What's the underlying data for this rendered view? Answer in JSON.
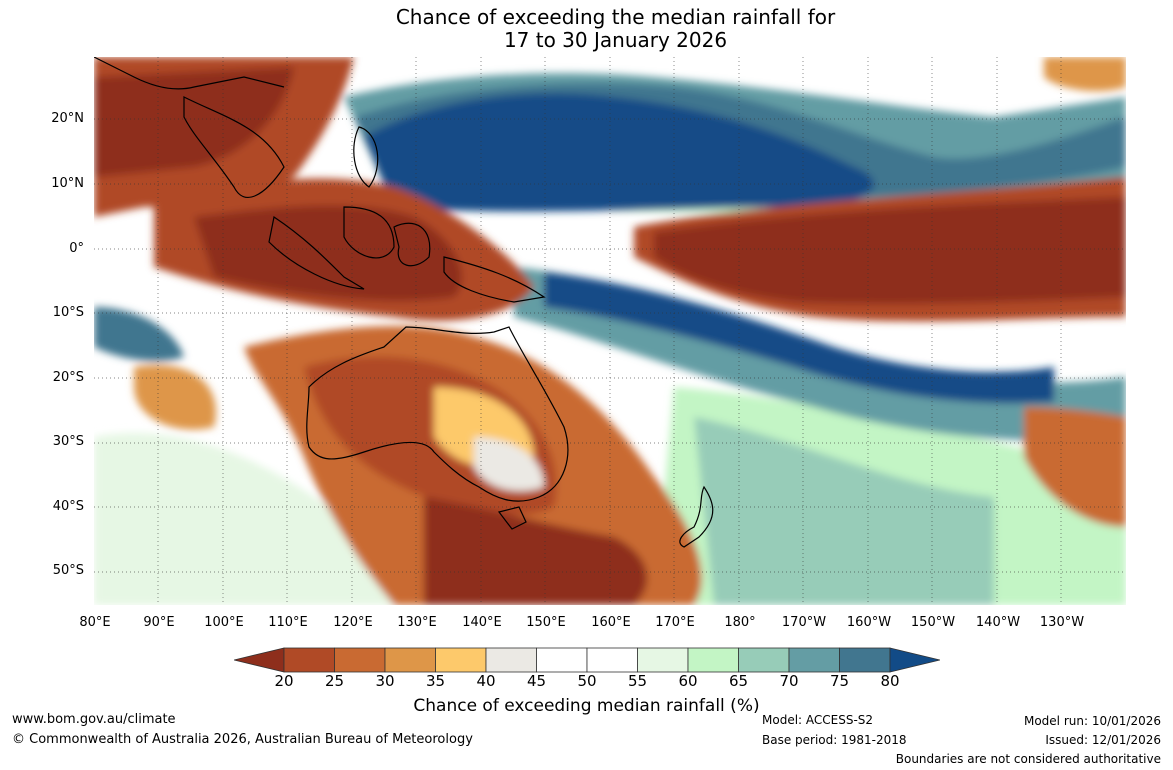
{
  "title": {
    "line1": "Chance of exceeding the median rainfall for",
    "line2": "17 to 30 January 2026"
  },
  "map": {
    "lat_labels": [
      "20°N",
      "10°N",
      "0°",
      "10°S",
      "20°S",
      "30°S",
      "40°S",
      "50°S"
    ],
    "lon_labels": [
      "80°E",
      "90°E",
      "100°E",
      "110°E",
      "120°E",
      "130°E",
      "140°E",
      "150°E",
      "160°E",
      "170°E",
      "180°",
      "170°W",
      "160°W",
      "150°W",
      "140°W",
      "130°W"
    ]
  },
  "colorbar": {
    "ticks": [
      "20",
      "25",
      "30",
      "35",
      "40",
      "45",
      "50",
      "55",
      "60",
      "65",
      "70",
      "75",
      "80"
    ],
    "colors": [
      "#8e2e1c",
      "#b04a26",
      "#c96a32",
      "#de9648",
      "#fdc96b",
      "#ebe9e4",
      "#ffffff",
      "#ffffff",
      "#e6f7e4",
      "#c3f5c5",
      "#97ccb8",
      "#649da4",
      "#41768f",
      "#124b87"
    ],
    "label": "Chance of exceeding median rainfall (%)"
  },
  "footer": {
    "url": "www.bom.gov.au/climate",
    "copyright": "© Commonwealth of Australia 2026, Australian Bureau of Meteorology",
    "model": "Model: ACCESS-S2",
    "base_period": "Base period: 1981-2018",
    "model_run": "Model run: 10/01/2026",
    "issued": "Issued: 12/01/2026",
    "disclaimer": "Boundaries are not considered authoritative"
  }
}
